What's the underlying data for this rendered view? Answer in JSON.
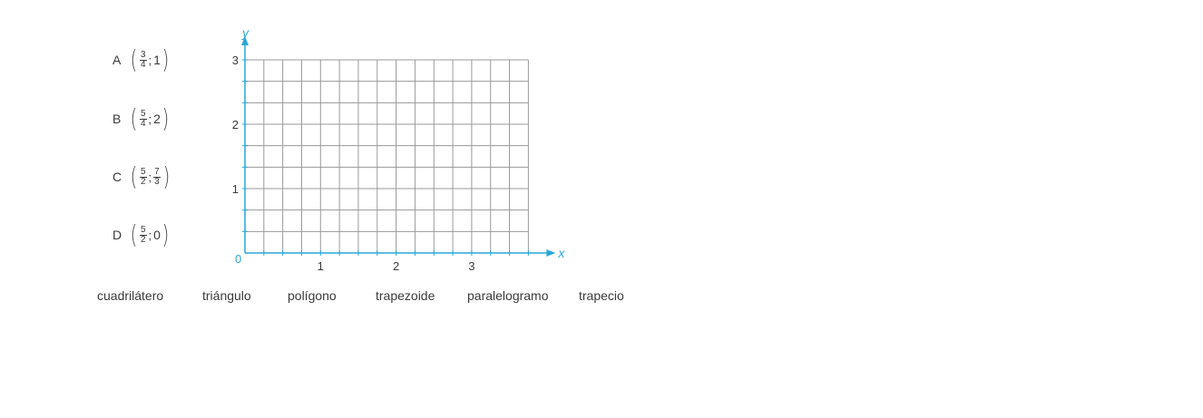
{
  "points": [
    {
      "letter": "A",
      "x_num": "3",
      "x_den": "4",
      "sep": ";",
      "y_int": "1"
    },
    {
      "letter": "B",
      "x_num": "5",
      "x_den": "4",
      "sep": ";",
      "y_int": "2"
    },
    {
      "letter": "C",
      "x_num": "5",
      "x_den": "2",
      "sep": ";",
      "y_num": "7",
      "y_den": "3"
    },
    {
      "letter": "D",
      "x_num": "5",
      "x_den": "2",
      "sep": ";",
      "y_int": "0"
    }
  ],
  "plane": {
    "x_axis_label": "x",
    "y_axis_label": "y",
    "origin_label": "0",
    "x_range": [
      0,
      3.75
    ],
    "y_range": [
      0,
      3
    ],
    "x_tick_labels": [
      "1",
      "2",
      "3"
    ],
    "y_tick_labels": [
      "1",
      "2",
      "3"
    ],
    "grid_step_x": 0.25,
    "grid_step_y": 0.333,
    "axis_color": "#29a8d8",
    "grid_color": "#9a9a9a"
  },
  "word_bank": [
    "cuadrilátero",
    "triángulo",
    "polígono",
    "trapezoide",
    "paralelogramo",
    "trapecio"
  ]
}
